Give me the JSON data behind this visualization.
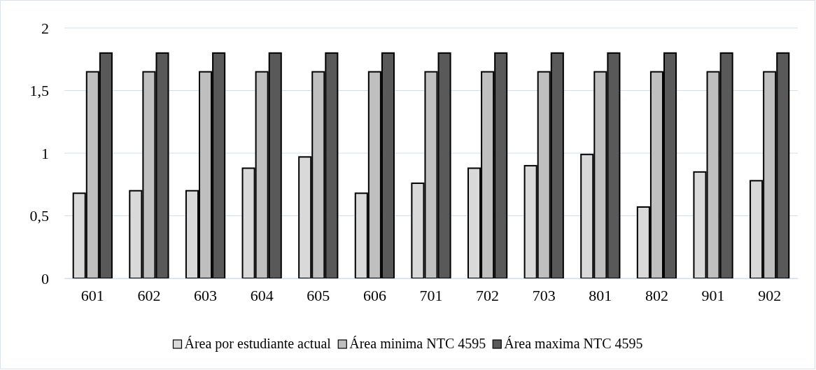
{
  "chart_data": {
    "type": "bar",
    "categories": [
      "601",
      "602",
      "603",
      "604",
      "605",
      "606",
      "701",
      "702",
      "703",
      "801",
      "802",
      "901",
      "902"
    ],
    "series": [
      {
        "name": "Área por estudiante actual",
        "color": "#d9d9d9",
        "values": [
          0.68,
          0.7,
          0.7,
          0.88,
          0.97,
          0.68,
          0.76,
          0.88,
          0.9,
          0.99,
          0.57,
          0.85,
          0.78
        ]
      },
      {
        "name": "Área minima NTC 4595",
        "color": "#bfbfbf",
        "values": [
          1.65,
          1.65,
          1.65,
          1.65,
          1.65,
          1.65,
          1.65,
          1.65,
          1.65,
          1.65,
          1.65,
          1.65,
          1.65
        ]
      },
      {
        "name": "Área maxima NTC 4595",
        "color": "#595959",
        "values": [
          1.8,
          1.8,
          1.8,
          1.8,
          1.8,
          1.8,
          1.8,
          1.8,
          1.8,
          1.8,
          1.8,
          1.8,
          1.8
        ]
      }
    ],
    "ylim": [
      0,
      2
    ],
    "yticks": [
      0,
      {
        "value": 0.5,
        "label": "0,5"
      },
      1,
      {
        "value": 1.5,
        "label": "1,5"
      },
      2
    ],
    "grid": "y",
    "legend": "bottom"
  }
}
